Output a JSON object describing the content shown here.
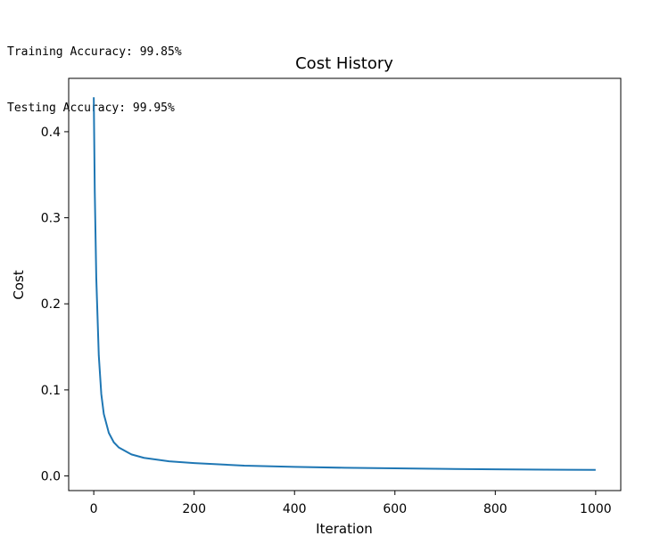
{
  "console": {
    "lines": [
      "Training Accuracy: 99.85%",
      "Testing Accuracy: 99.95%"
    ]
  },
  "chart_data": {
    "type": "line",
    "title": "Cost History",
    "xlabel": "Iteration",
    "ylabel": "Cost",
    "xlim": [
      -50,
      1050
    ],
    "ylim": [
      -0.017,
      0.462
    ],
    "xticks": [
      0,
      200,
      400,
      600,
      800,
      1000
    ],
    "yticks": [
      0.0,
      0.1,
      0.2,
      0.3,
      0.4
    ],
    "xtick_labels": [
      "0",
      "200",
      "400",
      "600",
      "800",
      "1000"
    ],
    "ytick_labels": [
      "0.0",
      "0.1",
      "0.2",
      "0.3",
      "0.4"
    ],
    "grid": false,
    "series": [
      {
        "color": "#1f77b4",
        "x": [
          0,
          2,
          5,
          10,
          15,
          20,
          30,
          40,
          50,
          75,
          100,
          150,
          200,
          300,
          400,
          500,
          600,
          700,
          800,
          900,
          1000
        ],
        "y": [
          0.44,
          0.33,
          0.23,
          0.14,
          0.095,
          0.072,
          0.05,
          0.039,
          0.033,
          0.025,
          0.021,
          0.017,
          0.015,
          0.012,
          0.0105,
          0.0095,
          0.0088,
          0.0082,
          0.0077,
          0.0073,
          0.007
        ]
      }
    ]
  }
}
